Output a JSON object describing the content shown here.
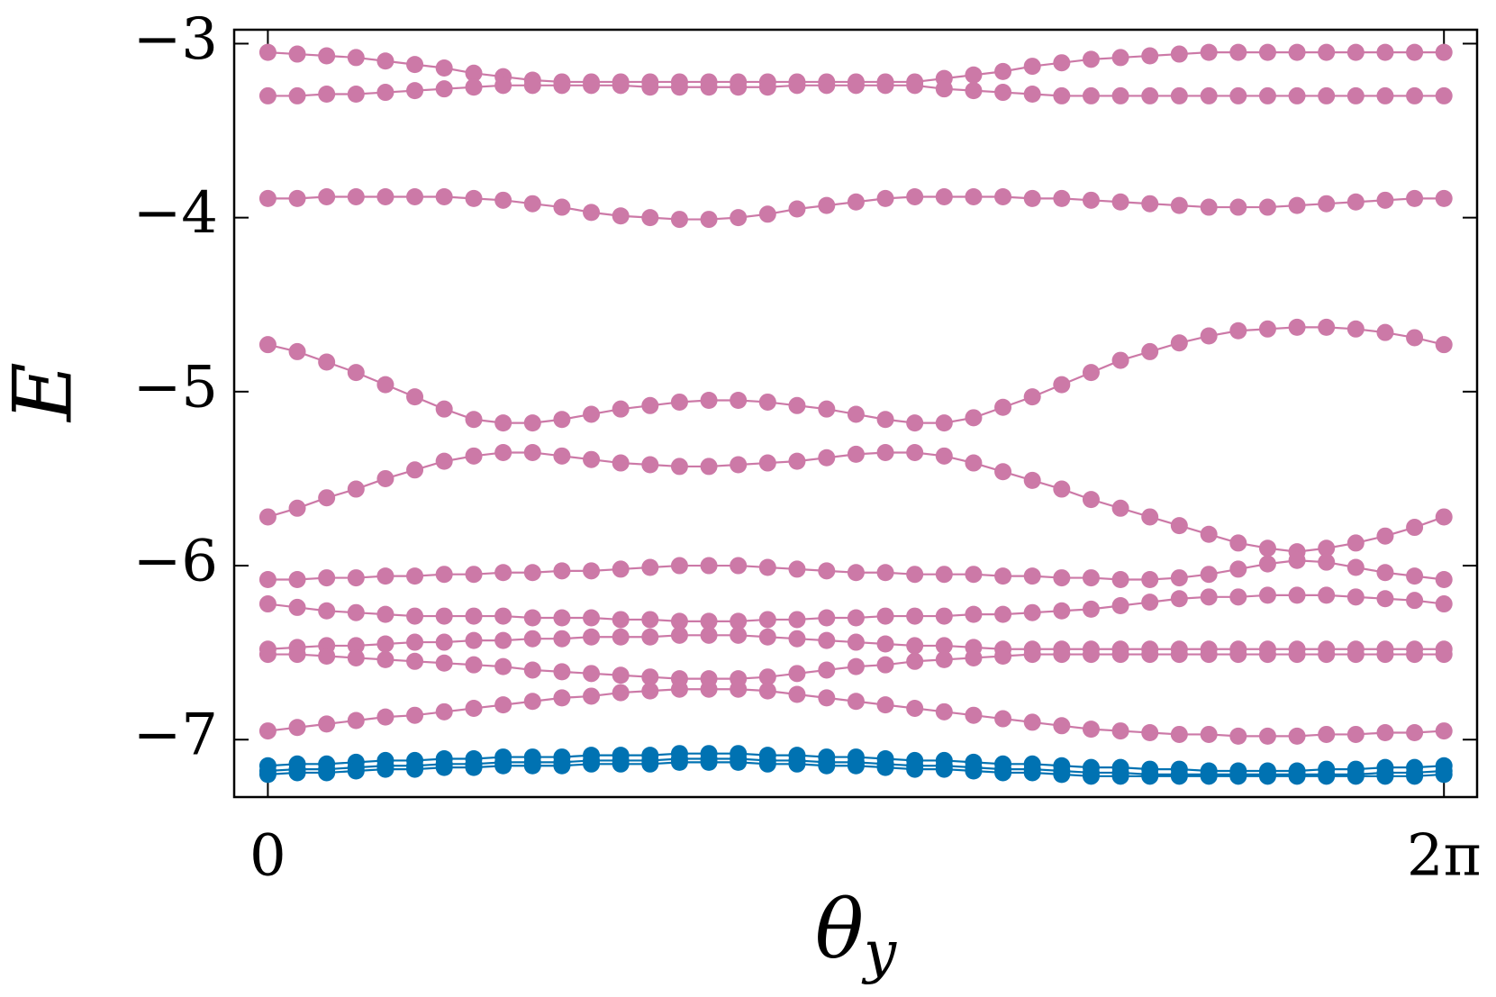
{
  "chart_data": {
    "type": "line",
    "xlabel": [
      "θ",
      "y"
    ],
    "ylabel": "E",
    "x": [
      0,
      0.157,
      0.314,
      0.471,
      0.628,
      0.785,
      0.942,
      1.1,
      1.257,
      1.414,
      1.571,
      1.728,
      1.885,
      2.042,
      2.199,
      2.356,
      2.513,
      2.67,
      2.827,
      2.985,
      3.142,
      3.299,
      3.456,
      3.613,
      3.77,
      3.927,
      4.084,
      4.241,
      4.398,
      4.555,
      4.712,
      4.869,
      5.027,
      5.184,
      5.341,
      5.498,
      5.655,
      5.812,
      5.969,
      6.126,
      6.283
    ],
    "xlim": [
      -0.18,
      6.46
    ],
    "xticks": [
      0,
      {
        "value": 6.283,
        "label": "2π"
      }
    ],
    "ylim": [
      -7.33,
      -2.92
    ],
    "yticks": [
      {
        "value": -3,
        "label": "−3"
      },
      {
        "value": -4,
        "label": "−4"
      },
      {
        "value": -5,
        "label": "−5"
      },
      {
        "value": -6,
        "label": "−6"
      },
      {
        "value": -7,
        "label": "−7"
      }
    ],
    "grid": false,
    "markers": true,
    "series": [
      {
        "color": "#cc79a7",
        "values": [
          -3.05,
          -3.06,
          -3.07,
          -3.08,
          -3.1,
          -3.12,
          -3.14,
          -3.17,
          -3.19,
          -3.21,
          -3.22,
          -3.22,
          -3.22,
          -3.22,
          -3.22,
          -3.22,
          -3.22,
          -3.22,
          -3.22,
          -3.22,
          -3.22,
          -3.22,
          -3.22,
          -3.2,
          -3.18,
          -3.16,
          -3.13,
          -3.11,
          -3.09,
          -3.08,
          -3.07,
          -3.06,
          -3.05,
          -3.05,
          -3.05,
          -3.05,
          -3.05,
          -3.05,
          -3.05,
          -3.05,
          -3.05
        ]
      },
      {
        "color": "#cc79a7",
        "values": [
          -3.3,
          -3.3,
          -3.29,
          -3.29,
          -3.28,
          -3.27,
          -3.26,
          -3.25,
          -3.24,
          -3.24,
          -3.24,
          -3.24,
          -3.24,
          -3.25,
          -3.25,
          -3.25,
          -3.25,
          -3.25,
          -3.24,
          -3.24,
          -3.24,
          -3.24,
          -3.24,
          -3.26,
          -3.27,
          -3.28,
          -3.29,
          -3.3,
          -3.3,
          -3.3,
          -3.3,
          -3.3,
          -3.3,
          -3.3,
          -3.3,
          -3.3,
          -3.3,
          -3.3,
          -3.3,
          -3.3,
          -3.3
        ]
      },
      {
        "color": "#cc79a7",
        "values": [
          -3.89,
          -3.89,
          -3.88,
          -3.88,
          -3.88,
          -3.88,
          -3.88,
          -3.89,
          -3.9,
          -3.92,
          -3.94,
          -3.97,
          -3.99,
          -4.0,
          -4.01,
          -4.01,
          -4.0,
          -3.98,
          -3.95,
          -3.93,
          -3.91,
          -3.89,
          -3.88,
          -3.88,
          -3.88,
          -3.88,
          -3.89,
          -3.89,
          -3.9,
          -3.91,
          -3.92,
          -3.93,
          -3.94,
          -3.94,
          -3.94,
          -3.93,
          -3.92,
          -3.91,
          -3.9,
          -3.89,
          -3.89
        ]
      },
      {
        "color": "#cc79a7",
        "values": [
          -4.73,
          -4.77,
          -4.83,
          -4.89,
          -4.96,
          -5.03,
          -5.1,
          -5.16,
          -5.18,
          -5.18,
          -5.16,
          -5.13,
          -5.1,
          -5.08,
          -5.06,
          -5.05,
          -5.05,
          -5.06,
          -5.08,
          -5.1,
          -5.13,
          -5.16,
          -5.18,
          -5.18,
          -5.15,
          -5.09,
          -5.03,
          -4.96,
          -4.89,
          -4.82,
          -4.77,
          -4.72,
          -4.68,
          -4.65,
          -4.64,
          -4.63,
          -4.63,
          -4.64,
          -4.66,
          -4.69,
          -4.73
        ]
      },
      {
        "color": "#cc79a7",
        "values": [
          -5.72,
          -5.67,
          -5.61,
          -5.56,
          -5.5,
          -5.45,
          -5.4,
          -5.37,
          -5.35,
          -5.35,
          -5.37,
          -5.39,
          -5.41,
          -5.42,
          -5.43,
          -5.43,
          -5.42,
          -5.41,
          -5.4,
          -5.38,
          -5.36,
          -5.35,
          -5.35,
          -5.37,
          -5.41,
          -5.46,
          -5.51,
          -5.56,
          -5.62,
          -5.67,
          -5.72,
          -5.77,
          -5.82,
          -5.87,
          -5.9,
          -5.92,
          -5.9,
          -5.87,
          -5.83,
          -5.78,
          -5.72
        ]
      },
      {
        "color": "#cc79a7",
        "values": [
          -6.08,
          -6.08,
          -6.07,
          -6.07,
          -6.06,
          -6.06,
          -6.05,
          -6.05,
          -6.04,
          -6.04,
          -6.03,
          -6.03,
          -6.02,
          -6.01,
          -6.0,
          -6.0,
          -6.0,
          -6.01,
          -6.02,
          -6.03,
          -6.04,
          -6.04,
          -6.05,
          -6.05,
          -6.05,
          -6.06,
          -6.06,
          -6.07,
          -6.07,
          -6.08,
          -6.08,
          -6.07,
          -6.05,
          -6.02,
          -5.99,
          -5.97,
          -5.98,
          -6.01,
          -6.04,
          -6.06,
          -6.08
        ]
      },
      {
        "color": "#cc79a7",
        "values": [
          -6.22,
          -6.24,
          -6.26,
          -6.27,
          -6.28,
          -6.29,
          -6.29,
          -6.29,
          -6.29,
          -6.3,
          -6.3,
          -6.3,
          -6.31,
          -6.31,
          -6.32,
          -6.32,
          -6.32,
          -6.31,
          -6.31,
          -6.3,
          -6.3,
          -6.29,
          -6.29,
          -6.29,
          -6.28,
          -6.28,
          -6.27,
          -6.26,
          -6.25,
          -6.23,
          -6.21,
          -6.19,
          -6.18,
          -6.18,
          -6.17,
          -6.17,
          -6.17,
          -6.18,
          -6.19,
          -6.2,
          -6.22
        ]
      },
      {
        "color": "#cc79a7",
        "values": [
          -6.48,
          -6.47,
          -6.46,
          -6.46,
          -6.45,
          -6.44,
          -6.44,
          -6.43,
          -6.43,
          -6.42,
          -6.42,
          -6.41,
          -6.41,
          -6.41,
          -6.4,
          -6.4,
          -6.4,
          -6.41,
          -6.42,
          -6.43,
          -6.44,
          -6.45,
          -6.46,
          -6.46,
          -6.47,
          -6.48,
          -6.48,
          -6.48,
          -6.48,
          -6.48,
          -6.48,
          -6.48,
          -6.48,
          -6.48,
          -6.48,
          -6.48,
          -6.48,
          -6.48,
          -6.48,
          -6.48,
          -6.48
        ]
      },
      {
        "color": "#cc79a7",
        "values": [
          -6.51,
          -6.51,
          -6.52,
          -6.53,
          -6.54,
          -6.55,
          -6.56,
          -6.57,
          -6.58,
          -6.6,
          -6.61,
          -6.62,
          -6.63,
          -6.64,
          -6.65,
          -6.65,
          -6.65,
          -6.64,
          -6.62,
          -6.6,
          -6.58,
          -6.57,
          -6.55,
          -6.54,
          -6.53,
          -6.52,
          -6.51,
          -6.51,
          -6.51,
          -6.51,
          -6.51,
          -6.51,
          -6.51,
          -6.51,
          -6.51,
          -6.51,
          -6.51,
          -6.51,
          -6.51,
          -6.51,
          -6.51
        ]
      },
      {
        "color": "#cc79a7",
        "values": [
          -6.95,
          -6.93,
          -6.91,
          -6.89,
          -6.87,
          -6.86,
          -6.84,
          -6.82,
          -6.8,
          -6.78,
          -6.76,
          -6.75,
          -6.73,
          -6.72,
          -6.71,
          -6.71,
          -6.71,
          -6.72,
          -6.74,
          -6.76,
          -6.78,
          -6.8,
          -6.82,
          -6.84,
          -6.86,
          -6.88,
          -6.9,
          -6.92,
          -6.94,
          -6.95,
          -6.96,
          -6.97,
          -6.97,
          -6.98,
          -6.98,
          -6.98,
          -6.97,
          -6.97,
          -6.96,
          -6.96,
          -6.95
        ]
      },
      {
        "color": "#0072b2",
        "values": [
          -7.15,
          -7.14,
          -7.14,
          -7.13,
          -7.12,
          -7.12,
          -7.11,
          -7.11,
          -7.1,
          -7.1,
          -7.1,
          -7.09,
          -7.09,
          -7.09,
          -7.08,
          -7.08,
          -7.08,
          -7.09,
          -7.09,
          -7.1,
          -7.1,
          -7.11,
          -7.12,
          -7.12,
          -7.13,
          -7.14,
          -7.14,
          -7.15,
          -7.16,
          -7.16,
          -7.17,
          -7.17,
          -7.18,
          -7.18,
          -7.18,
          -7.18,
          -7.17,
          -7.17,
          -7.16,
          -7.16,
          -7.15
        ]
      },
      {
        "color": "#0072b2",
        "values": [
          -7.18,
          -7.17,
          -7.17,
          -7.16,
          -7.15,
          -7.15,
          -7.14,
          -7.14,
          -7.13,
          -7.13,
          -7.13,
          -7.12,
          -7.12,
          -7.12,
          -7.11,
          -7.11,
          -7.11,
          -7.12,
          -7.12,
          -7.13,
          -7.13,
          -7.14,
          -7.15,
          -7.15,
          -7.16,
          -7.17,
          -7.17,
          -7.18,
          -7.19,
          -7.19,
          -7.2,
          -7.2,
          -7.2,
          -7.2,
          -7.2,
          -7.2,
          -7.2,
          -7.2,
          -7.19,
          -7.19,
          -7.18
        ]
      },
      {
        "color": "#0072b2",
        "values": [
          -7.2,
          -7.19,
          -7.19,
          -7.18,
          -7.17,
          -7.17,
          -7.16,
          -7.16,
          -7.15,
          -7.15,
          -7.15,
          -7.14,
          -7.14,
          -7.14,
          -7.13,
          -7.13,
          -7.13,
          -7.14,
          -7.14,
          -7.15,
          -7.15,
          -7.16,
          -7.17,
          -7.17,
          -7.18,
          -7.19,
          -7.19,
          -7.2,
          -7.21,
          -7.21,
          -7.21,
          -7.21,
          -7.21,
          -7.21,
          -7.21,
          -7.21,
          -7.21,
          -7.21,
          -7.21,
          -7.21,
          -7.2
        ]
      }
    ]
  }
}
